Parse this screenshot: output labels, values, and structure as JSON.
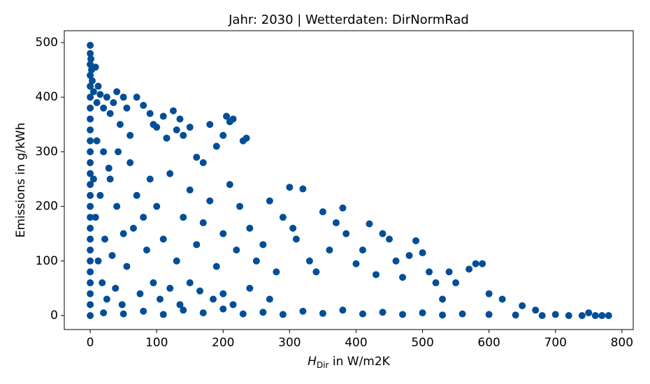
{
  "chart_data": {
    "type": "scatter",
    "title": "Jahr: 2030 | Wetterdaten: DirNormRad",
    "x_label": {
      "symbol": "H",
      "subscript": "Dir",
      "text": " in W/m2K"
    },
    "y_label": "Emissions in g/kWh",
    "color": "#034e96",
    "xlim": [
      -39,
      817
    ],
    "ylim": [
      -25.6,
      521.7
    ],
    "xticks": [
      0,
      100,
      200,
      300,
      400,
      500,
      600,
      700,
      800
    ],
    "yticks": [
      0,
      100,
      200,
      300,
      400,
      500
    ],
    "series": [
      {
        "name": "Emissions",
        "x": [
          0,
          0,
          0,
          0,
          0,
          0,
          0,
          0,
          0,
          0,
          0,
          0,
          0,
          0,
          0,
          0,
          0,
          0,
          0,
          0,
          0,
          0,
          0,
          0,
          0,
          0,
          1,
          2,
          3,
          5,
          8,
          10,
          12,
          15,
          20,
          25,
          30,
          35,
          40,
          45,
          50,
          55,
          60,
          70,
          80,
          90,
          95,
          100,
          110,
          115,
          125,
          130,
          135,
          140,
          150,
          160,
          170,
          180,
          190,
          200,
          205,
          210,
          215,
          230,
          235,
          20,
          30,
          40,
          50,
          60,
          70,
          80,
          90,
          100,
          110,
          120,
          130,
          140,
          150,
          160,
          170,
          180,
          190,
          200,
          210,
          220,
          225,
          240,
          250,
          260,
          270,
          280,
          290,
          300,
          305,
          310,
          320,
          330,
          340,
          350,
          360,
          370,
          380,
          385,
          400,
          410,
          420,
          430,
          440,
          450,
          460,
          470,
          480,
          490,
          500,
          510,
          520,
          530,
          540,
          550,
          570,
          580,
          590,
          600,
          620,
          650,
          670,
          20,
          50,
          80,
          110,
          140,
          170,
          200,
          230,
          260,
          290,
          320,
          350,
          380,
          410,
          440,
          470,
          500,
          530,
          560,
          600,
          640,
          680,
          700,
          720,
          740,
          750,
          760,
          770,
          780,
          5,
          8,
          10,
          12,
          15,
          18,
          22,
          25,
          28,
          33,
          38,
          42,
          48,
          55,
          65,
          75,
          85,
          95,
          105,
          120,
          135,
          150,
          165,
          185,
          200,
          215,
          240,
          270
        ],
        "y": [
          495,
          480,
          460,
          440,
          420,
          400,
          380,
          360,
          340,
          320,
          300,
          280,
          260,
          240,
          220,
          200,
          180,
          160,
          140,
          120,
          100,
          80,
          60,
          40,
          20,
          0,
          470,
          450,
          430,
          410,
          455,
          390,
          420,
          405,
          380,
          400,
          370,
          390,
          410,
          350,
          400,
          380,
          330,
          400,
          385,
          370,
          350,
          345,
          365,
          325,
          375,
          340,
          360,
          330,
          345,
          290,
          280,
          350,
          310,
          330,
          365,
          355,
          360,
          320,
          325,
          300,
          250,
          200,
          150,
          280,
          220,
          180,
          250,
          200,
          140,
          260,
          100,
          180,
          230,
          130,
          170,
          210,
          90,
          150,
          240,
          120,
          200,
          160,
          100,
          130,
          210,
          80,
          180,
          235,
          160,
          140,
          232,
          100,
          80,
          190,
          120,
          170,
          197,
          150,
          95,
          120,
          168,
          75,
          150,
          140,
          100,
          70,
          110,
          137,
          115,
          80,
          60,
          30,
          80,
          60,
          85,
          95,
          95,
          40,
          30,
          18,
          10,
          5,
          3,
          8,
          2,
          10,
          5,
          12,
          3,
          6,
          2,
          8,
          4,
          10,
          3,
          6,
          2,
          5,
          1,
          3,
          2,
          1,
          0,
          2,
          0,
          0,
          5,
          0,
          0,
          0,
          250,
          180,
          320,
          100,
          220,
          60,
          140,
          30,
          270,
          110,
          50,
          300,
          20,
          90,
          160,
          40,
          120,
          60,
          30,
          50,
          20,
          60,
          45,
          30,
          40,
          20,
          50,
          30
        ]
      }
    ]
  }
}
